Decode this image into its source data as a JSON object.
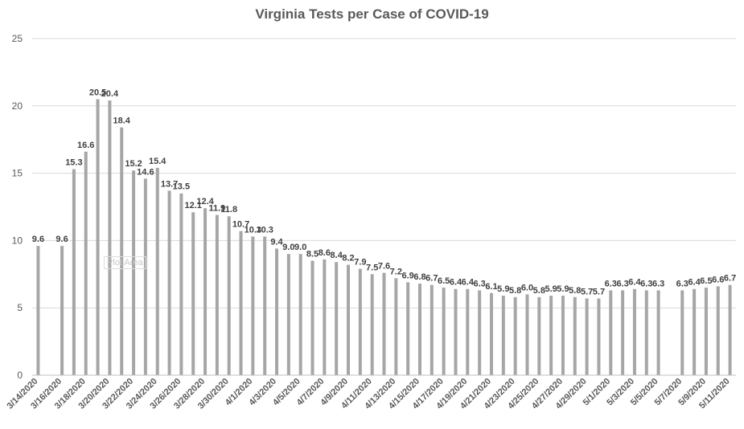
{
  "chart_data": {
    "type": "bar",
    "title": "Virginia Tests per Case of COVID-19",
    "xlabel": "",
    "ylabel": "",
    "ylim": [
      0,
      25
    ],
    "yticks": [
      0,
      5,
      10,
      15,
      20,
      25
    ],
    "grid": true,
    "legend": "none",
    "bar_color": "#a6a6a6",
    "label_color": "#404040",
    "tick_label_color": "#595959",
    "grid_color": "#d9d9d9",
    "hover_tag": "Plot Area",
    "categories": [
      "3/14/2020",
      "3/15/2020",
      "3/16/2020",
      "3/17/2020",
      "3/18/2020",
      "3/19/2020",
      "3/20/2020",
      "3/21/2020",
      "3/22/2020",
      "3/23/2020",
      "3/24/2020",
      "3/25/2020",
      "3/26/2020",
      "3/27/2020",
      "3/28/2020",
      "3/29/2020",
      "3/30/2020",
      "3/31/2020",
      "4/1/2020",
      "4/2/2020",
      "4/3/2020",
      "4/4/2020",
      "4/5/2020",
      "4/6/2020",
      "4/7/2020",
      "4/8/2020",
      "4/9/2020",
      "4/10/2020",
      "4/11/2020",
      "4/12/2020",
      "4/13/2020",
      "4/14/2020",
      "4/15/2020",
      "4/16/2020",
      "4/17/2020",
      "4/18/2020",
      "4/19/2020",
      "4/20/2020",
      "4/21/2020",
      "4/22/2020",
      "4/23/2020",
      "4/24/2020",
      "4/25/2020",
      "4/26/2020",
      "4/27/2020",
      "4/28/2020",
      "4/29/2020",
      "4/30/2020",
      "5/1/2020",
      "5/2/2020",
      "5/3/2020",
      "5/4/2020",
      "5/5/2020",
      "5/6/2020",
      "5/7/2020",
      "5/8/2020",
      "5/9/2020",
      "5/10/2020",
      "5/11/2020"
    ],
    "values": [
      9.6,
      null,
      9.6,
      15.3,
      16.6,
      20.5,
      20.4,
      18.4,
      15.2,
      14.6,
      15.4,
      13.7,
      13.5,
      12.1,
      12.4,
      11.9,
      11.8,
      10.7,
      10.3,
      10.3,
      9.4,
      9.0,
      9.0,
      8.5,
      8.6,
      8.4,
      8.2,
      7.9,
      7.5,
      7.6,
      7.2,
      6.9,
      6.8,
      6.7,
      6.5,
      6.4,
      6.4,
      6.3,
      6.1,
      5.9,
      5.8,
      6.0,
      5.8,
      5.9,
      5.9,
      5.8,
      5.7,
      5.7,
      6.3,
      6.3,
      6.4,
      6.3,
      6.3,
      null,
      6.3,
      6.4,
      6.5,
      6.6,
      6.7
    ],
    "data_labels": [
      "9.6",
      "",
      "9.6",
      "15.3",
      "16.6",
      "20.5",
      "20.4",
      "18.4",
      "15.2",
      "14.6",
      "15.4",
      "13.7",
      "13.5",
      "12.1",
      "12.4",
      "11.9",
      "11.8",
      "10.7",
      "10.3",
      "10.3",
      "9.4",
      "9.0",
      "9.0",
      "8.5",
      "8.6",
      "8.4",
      "8.2",
      "7.9",
      "7.5",
      "7.6",
      "7.2",
      "6.9",
      "6.8",
      "6.7",
      "6.5",
      "6.4",
      "6.4",
      "6.3",
      "6.1",
      "5.9",
      "5.8",
      "6.0",
      "5.8",
      "5.9",
      "5.9",
      "5.8",
      "5.7",
      "5.7",
      "6.3",
      "6.3",
      "6.4",
      "6.3",
      "6.3",
      "",
      "6.3",
      "6.4",
      "6.5",
      "6.6",
      "6.7"
    ],
    "x_tick_labels": [
      "3/14/2020",
      "3/16/2020",
      "3/18/2020",
      "3/20/2020",
      "3/22/2020",
      "3/24/2020",
      "3/26/2020",
      "3/28/2020",
      "3/30/2020",
      "4/1/2020",
      "4/3/2020",
      "4/5/2020",
      "4/7/2020",
      "4/9/2020",
      "4/11/2020",
      "4/13/2020",
      "4/15/2020",
      "4/17/2020",
      "4/19/2020",
      "4/21/2020",
      "4/23/2020",
      "4/25/2020",
      "4/27/2020",
      "4/29/2020",
      "5/1/2020",
      "5/3/2020",
      "5/5/2020",
      "5/7/2020",
      "5/9/2020",
      "5/11/2020"
    ]
  }
}
